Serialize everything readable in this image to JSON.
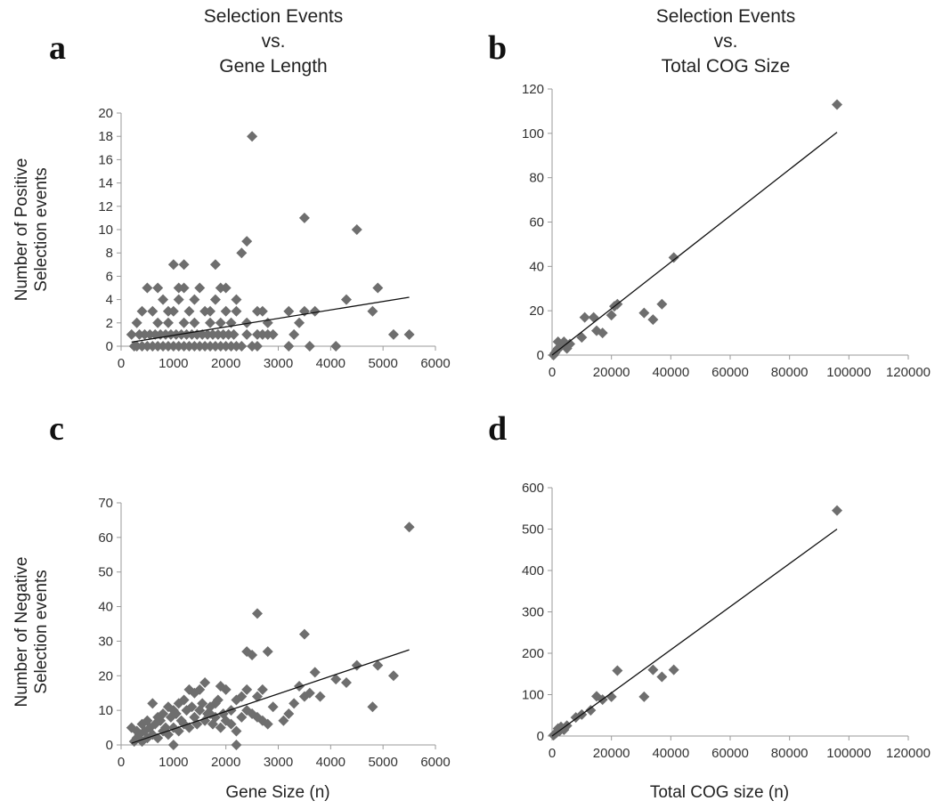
{
  "chart_data": [
    {
      "panel": "a",
      "type": "scatter",
      "title_lines": [
        "Selection Events",
        "vs.",
        "Gene Length"
      ],
      "xlabel": "",
      "ylabel_lines": [
        "Number of Positive",
        "Selection events"
      ],
      "xlim": [
        0,
        6000
      ],
      "ylim": [
        0,
        20
      ],
      "xticks": [
        0,
        1000,
        2000,
        3000,
        4000,
        5000,
        6000
      ],
      "yticks": [
        0,
        2,
        4,
        6,
        8,
        10,
        12,
        14,
        16,
        18,
        20
      ],
      "grid": false,
      "marker": "diamond",
      "marker_color": "#6e6e6e",
      "trendline": [
        [
          200,
          0.35
        ],
        [
          5500,
          4.2
        ]
      ],
      "points": [
        [
          2500,
          18
        ],
        [
          3500,
          11
        ],
        [
          4500,
          10
        ],
        [
          2400,
          9
        ],
        [
          2300,
          8
        ],
        [
          1000,
          7
        ],
        [
          1200,
          7
        ],
        [
          1800,
          7
        ],
        [
          4900,
          5
        ],
        [
          4300,
          4
        ],
        [
          3700,
          3
        ],
        [
          3500,
          3
        ],
        [
          3200,
          3
        ],
        [
          4800,
          3
        ],
        [
          2000,
          5
        ],
        [
          1900,
          5
        ],
        [
          1500,
          5
        ],
        [
          1200,
          5
        ],
        [
          1100,
          5
        ],
        [
          700,
          5
        ],
        [
          500,
          5
        ],
        [
          2200,
          4
        ],
        [
          1800,
          4
        ],
        [
          1400,
          4
        ],
        [
          1100,
          4
        ],
        [
          800,
          4
        ],
        [
          400,
          3
        ],
        [
          600,
          3
        ],
        [
          900,
          3
        ],
        [
          1000,
          3
        ],
        [
          1300,
          3
        ],
        [
          1600,
          3
        ],
        [
          1700,
          3
        ],
        [
          2000,
          3
        ],
        [
          2200,
          3
        ],
        [
          2600,
          3
        ],
        [
          2700,
          3
        ],
        [
          2800,
          2
        ],
        [
          3400,
          2
        ],
        [
          5200,
          1
        ],
        [
          5500,
          1
        ],
        [
          3300,
          1
        ],
        [
          3600,
          0
        ],
        [
          4100,
          0
        ],
        [
          2900,
          1
        ],
        [
          2600,
          1
        ],
        [
          2400,
          2
        ],
        [
          2100,
          2
        ],
        [
          1900,
          2
        ],
        [
          1700,
          2
        ],
        [
          1400,
          2
        ],
        [
          1200,
          2
        ],
        [
          900,
          2
        ],
        [
          700,
          2
        ],
        [
          300,
          2
        ],
        [
          200,
          1
        ],
        [
          250,
          0
        ],
        [
          300,
          0
        ],
        [
          350,
          1
        ],
        [
          400,
          0
        ],
        [
          450,
          1
        ],
        [
          500,
          0
        ],
        [
          550,
          1
        ],
        [
          600,
          0
        ],
        [
          650,
          1
        ],
        [
          700,
          0
        ],
        [
          750,
          1
        ],
        [
          800,
          0
        ],
        [
          850,
          1
        ],
        [
          900,
          0
        ],
        [
          950,
          1
        ],
        [
          1000,
          0
        ],
        [
          1050,
          1
        ],
        [
          1100,
          0
        ],
        [
          1150,
          1
        ],
        [
          1200,
          0
        ],
        [
          1250,
          1
        ],
        [
          1300,
          0
        ],
        [
          1350,
          1
        ],
        [
          1400,
          0
        ],
        [
          1450,
          1
        ],
        [
          1500,
          0
        ],
        [
          1550,
          1
        ],
        [
          1600,
          0
        ],
        [
          1650,
          1
        ],
        [
          1700,
          0
        ],
        [
          1750,
          1
        ],
        [
          1800,
          0
        ],
        [
          1850,
          1
        ],
        [
          1900,
          0
        ],
        [
          1950,
          1
        ],
        [
          2000,
          0
        ],
        [
          2050,
          1
        ],
        [
          2100,
          0
        ],
        [
          2150,
          1
        ],
        [
          2200,
          0
        ],
        [
          2300,
          0
        ],
        [
          2400,
          1
        ],
        [
          2500,
          0
        ],
        [
          2600,
          0
        ],
        [
          2700,
          1
        ],
        [
          2800,
          1
        ],
        [
          3200,
          0
        ]
      ]
    },
    {
      "panel": "b",
      "type": "scatter",
      "title_lines": [
        "Selection Events",
        "vs.",
        "Total COG Size"
      ],
      "xlabel": "",
      "ylabel_lines": [],
      "xlim": [
        0,
        120000
      ],
      "ylim": [
        0,
        120
      ],
      "xticks": [
        0,
        20000,
        40000,
        60000,
        80000,
        100000,
        120000
      ],
      "yticks": [
        0,
        20,
        40,
        60,
        80,
        100,
        120
      ],
      "grid": false,
      "marker": "diamond",
      "marker_color": "#6e6e6e",
      "trendline": [
        [
          0,
          0
        ],
        [
          96000,
          100.5
        ]
      ],
      "points": [
        [
          96000,
          113
        ],
        [
          41000,
          44
        ],
        [
          37000,
          23
        ],
        [
          34000,
          16
        ],
        [
          31000,
          19
        ],
        [
          22000,
          23
        ],
        [
          21000,
          22
        ],
        [
          20000,
          18
        ],
        [
          17000,
          10
        ],
        [
          15000,
          11
        ],
        [
          14000,
          17
        ],
        [
          11000,
          17
        ],
        [
          10000,
          8
        ],
        [
          6000,
          5
        ],
        [
          5000,
          3
        ],
        [
          4000,
          6
        ],
        [
          3000,
          4
        ],
        [
          2000,
          6
        ],
        [
          2000,
          3
        ],
        [
          1500,
          2
        ],
        [
          1000,
          1
        ],
        [
          500,
          0
        ]
      ]
    },
    {
      "panel": "c",
      "type": "scatter",
      "title_lines": [],
      "xlabel": "Gene Size (n)",
      "ylabel_lines": [
        "Number of Negative",
        "Selection events"
      ],
      "xlim": [
        0,
        6000
      ],
      "ylim": [
        0,
        70
      ],
      "xticks": [
        0,
        1000,
        2000,
        3000,
        4000,
        5000,
        6000
      ],
      "yticks": [
        0,
        10,
        20,
        30,
        40,
        50,
        60,
        70
      ],
      "grid": false,
      "marker": "diamond",
      "marker_color": "#6e6e6e",
      "trendline": [
        [
          200,
          0.5
        ],
        [
          5500,
          27.5
        ]
      ],
      "points": [
        [
          5500,
          63
        ],
        [
          2600,
          38
        ],
        [
          3500,
          32
        ],
        [
          2400,
          27
        ],
        [
          2800,
          27
        ],
        [
          2500,
          26
        ],
        [
          4500,
          23
        ],
        [
          4900,
          23
        ],
        [
          3700,
          21
        ],
        [
          5200,
          20
        ],
        [
          4100,
          19
        ],
        [
          4300,
          18
        ],
        [
          3400,
          17
        ],
        [
          3500,
          14
        ],
        [
          3600,
          15
        ],
        [
          3800,
          14
        ],
        [
          4800,
          11
        ],
        [
          3300,
          12
        ],
        [
          3200,
          9
        ],
        [
          3100,
          7
        ],
        [
          2900,
          11
        ],
        [
          2700,
          16
        ],
        [
          2600,
          14
        ],
        [
          2400,
          16
        ],
        [
          2300,
          14
        ],
        [
          2200,
          13
        ],
        [
          2100,
          10
        ],
        [
          2000,
          16
        ],
        [
          1900,
          17
        ],
        [
          1800,
          12
        ],
        [
          1700,
          9
        ],
        [
          1600,
          18
        ],
        [
          1500,
          16
        ],
        [
          1400,
          15
        ],
        [
          1300,
          16
        ],
        [
          1200,
          13
        ],
        [
          1100,
          12
        ],
        [
          1000,
          10
        ],
        [
          900,
          11
        ],
        [
          800,
          9
        ],
        [
          700,
          8
        ],
        [
          600,
          12
        ],
        [
          500,
          7
        ],
        [
          400,
          6
        ],
        [
          300,
          4
        ],
        [
          200,
          5
        ],
        [
          250,
          1
        ],
        [
          300,
          2
        ],
        [
          350,
          3
        ],
        [
          400,
          1
        ],
        [
          450,
          4
        ],
        [
          500,
          2
        ],
        [
          550,
          5
        ],
        [
          600,
          3
        ],
        [
          650,
          6
        ],
        [
          700,
          2
        ],
        [
          750,
          7
        ],
        [
          800,
          4
        ],
        [
          850,
          5
        ],
        [
          900,
          3
        ],
        [
          950,
          8
        ],
        [
          1000,
          5
        ],
        [
          1050,
          9
        ],
        [
          1100,
          4
        ],
        [
          1150,
          7
        ],
        [
          1200,
          6
        ],
        [
          1250,
          10
        ],
        [
          1300,
          5
        ],
        [
          1350,
          11
        ],
        [
          1400,
          8
        ],
        [
          1450,
          6
        ],
        [
          1500,
          10
        ],
        [
          1550,
          12
        ],
        [
          1600,
          7
        ],
        [
          1650,
          9
        ],
        [
          1700,
          11
        ],
        [
          1750,
          6
        ],
        [
          1800,
          8
        ],
        [
          1850,
          13
        ],
        [
          1900,
          5
        ],
        [
          1950,
          9
        ],
        [
          2000,
          7
        ],
        [
          2100,
          6
        ],
        [
          2200,
          4
        ],
        [
          2300,
          8
        ],
        [
          2400,
          10
        ],
        [
          2500,
          9
        ],
        [
          2600,
          8
        ],
        [
          2700,
          7
        ],
        [
          2800,
          6
        ],
        [
          2200,
          0
        ],
        [
          1000,
          0
        ]
      ]
    },
    {
      "panel": "d",
      "type": "scatter",
      "title_lines": [],
      "xlabel": "Total COG size (n)",
      "ylabel_lines": [],
      "xlim": [
        0,
        120000
      ],
      "ylim": [
        0,
        600
      ],
      "xticks": [
        0,
        20000,
        40000,
        60000,
        80000,
        100000,
        120000
      ],
      "yticks": [
        0,
        100,
        200,
        300,
        400,
        500,
        600
      ],
      "grid": false,
      "marker": "diamond",
      "marker_color": "#6e6e6e",
      "trendline": [
        [
          0,
          0
        ],
        [
          96000,
          500
        ]
      ],
      "points": [
        [
          96000,
          545
        ],
        [
          41000,
          160
        ],
        [
          37000,
          143
        ],
        [
          34000,
          160
        ],
        [
          31000,
          95
        ],
        [
          22000,
          158
        ],
        [
          20000,
          95
        ],
        [
          17000,
          88
        ],
        [
          15000,
          96
        ],
        [
          13000,
          62
        ],
        [
          10000,
          52
        ],
        [
          8000,
          45
        ],
        [
          5000,
          25
        ],
        [
          4000,
          15
        ],
        [
          3000,
          22
        ],
        [
          2500,
          12
        ],
        [
          2000,
          18
        ],
        [
          1500,
          8
        ],
        [
          1000,
          5
        ],
        [
          500,
          2
        ]
      ]
    }
  ],
  "panel_letters": [
    "a",
    "b",
    "c",
    "d"
  ]
}
